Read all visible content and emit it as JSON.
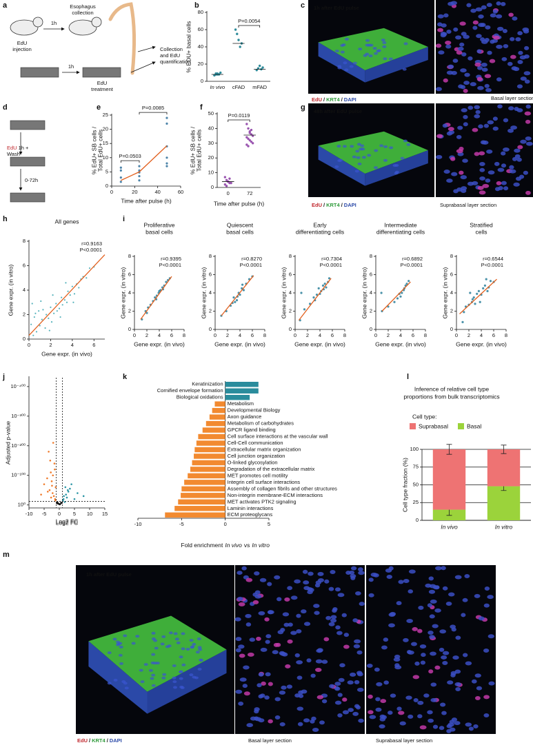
{
  "figure": {
    "labels": [
      "a",
      "b",
      "c",
      "d",
      "e",
      "f",
      "g",
      "h",
      "i",
      "j",
      "k",
      "l",
      "m"
    ],
    "a": {
      "edu": "EdU",
      "injection": "injection",
      "t1": "1h",
      "collection": [
        "Esophagus",
        "collection"
      ],
      "t2": "1h",
      "treatment": "treatment",
      "quant": [
        "Collection",
        "and EdU",
        "quantification"
      ]
    },
    "c": {
      "caption": "1h after EdU pulse",
      "section": "Basal layer section"
    },
    "d": {
      "edu": "EdU",
      "pulse": "1h +",
      "wash": "Wash",
      "chase": "0-72h"
    },
    "g": {
      "caption": "48h after EdU pulse",
      "section": "Suprabasal layer section"
    },
    "m": {
      "caption": "1h after EdU pulse",
      "basal": "Basal layer section",
      "suprabasal": "Suprabasal layer section"
    },
    "stain": {
      "edu": "EdU",
      "sep": "/",
      "krt4": "KRT4",
      "dapi": "DAPI"
    }
  },
  "chart_data": [
    {
      "type": "strip",
      "ylabel": "% EDU+ basal cells",
      "categories": [
        "In vivo",
        "cFAD",
        "mFAD"
      ],
      "values": [
        [
          7,
          8,
          9,
          8,
          10,
          7,
          9,
          8
        ],
        [
          60,
          55,
          48,
          40,
          44
        ],
        [
          13,
          15,
          18,
          14,
          16
        ]
      ],
      "medians": [
        8,
        44,
        14
      ],
      "color": "#2e8b9a",
      "median_color": "#f26b21",
      "ylim": [
        0,
        80
      ],
      "yticks": [
        0,
        20,
        40,
        60,
        80
      ],
      "comparisons": [
        {
          "label": "P=0.0054",
          "between": [
            "cFAD",
            "mFAD"
          ]
        }
      ]
    },
    {
      "type": "scatter-fit",
      "xlabel": "Time after pulse (h)",
      "ylabel": [
        "% EdU+ SB cells /",
        "Total EdU+ cells"
      ],
      "x": [
        8,
        8,
        8,
        8,
        24,
        24,
        24,
        24,
        24,
        48,
        48,
        48,
        48,
        48,
        48
      ],
      "y": [
        6.5,
        5.5,
        3,
        1.5,
        7,
        5.5,
        4.8,
        3.5,
        2,
        24,
        22,
        14,
        10,
        8,
        7
      ],
      "fit": {
        "x": [
          8,
          24,
          48
        ],
        "y": [
          2,
          5,
          14.2
        ]
      },
      "color": "#2e6f9a",
      "fit_color": "#e2601e",
      "xlim": [
        0,
        60
      ],
      "xticks": [
        0,
        20,
        40,
        60
      ],
      "ylim": [
        0,
        25
      ],
      "yticks": [
        0,
        5,
        10,
        15,
        20,
        25
      ],
      "comparisons": [
        {
          "label": "P=0.0503",
          "between": [
            8,
            24
          ]
        },
        {
          "label": "P=0.0085",
          "between": [
            24,
            48
          ]
        }
      ]
    },
    {
      "type": "strip",
      "xlabel": "Time after pulse (h)",
      "ylabel": [
        "% EdU+ SB cells /",
        "Total EdU+ cells"
      ],
      "categories": [
        "0",
        "72"
      ],
      "values": [
        [
          7,
          5,
          4,
          3,
          3,
          2,
          1,
          4,
          6
        ],
        [
          43,
          40,
          38,
          36,
          35,
          34,
          33,
          32,
          31,
          30,
          29,
          28,
          37,
          39
        ]
      ],
      "medians": [
        4,
        35.5
      ],
      "color": "#9a55b0",
      "median_color": "#e5262b",
      "ylim": [
        0,
        50
      ],
      "yticks": [
        0,
        10,
        20,
        30,
        40,
        50
      ],
      "comparisons": [
        {
          "label": "P=0.0119",
          "between": [
            "0",
            "72"
          ]
        }
      ]
    },
    {
      "type": "scatter-fit",
      "title": "All genes",
      "xlabel": "Gene expr. (in vivo)",
      "ylabel": "Gene expr. (in vitro)",
      "annotations": [
        "r=0.9163",
        "P<0.0001"
      ],
      "x": [
        0.2,
        0.4,
        0.5,
        0.7,
        0.9,
        1.0,
        1.2,
        1.3,
        1.5,
        1.6,
        1.8,
        2.0,
        2.1,
        2.3,
        2.5,
        2.6,
        2.8,
        3.0,
        3.1,
        3.3,
        3.5,
        3.6,
        3.8,
        4.0,
        4.2,
        4.4,
        4.6,
        4.8,
        5.0,
        5.3,
        5.6,
        6.0,
        0.3,
        1.1,
        2.2,
        3.4,
        0.6,
        1.9,
        2.9,
        4.1
      ],
      "y": [
        1.2,
        0.3,
        1.8,
        0.6,
        2.3,
        1.1,
        1.6,
        2.4,
        0.9,
        2.0,
        1.7,
        2.6,
        1.4,
        2.1,
        2.9,
        2.3,
        2.5,
        3.4,
        2.8,
        3.2,
        3.0,
        3.9,
        3.6,
        4.3,
        3.7,
        4.5,
        4.2,
        4.9,
        5.1,
        5.0,
        5.8,
        5.9,
        2.9,
        3.1,
        3.6,
        4.6,
        2.1,
        0.7,
        1.8,
        3.0
      ],
      "fit": {
        "x": [
          0,
          7
        ],
        "y": [
          0.3,
          6.9
        ]
      },
      "color": "#3aa6b0",
      "fit_color": "#e2601e",
      "xlim": [
        0,
        7
      ],
      "xticks": [
        0,
        2,
        4,
        6
      ],
      "ylim": [
        0,
        8
      ],
      "yticks": [
        0,
        2,
        4,
        6,
        8
      ]
    },
    {
      "type": "scatter-fit",
      "title": [
        "Proliferative",
        "basal cells"
      ],
      "xlabel": "Gene expr. (in vivo)",
      "ylabel": "Gene expr. (in vitro)",
      "annotations": [
        "r=0.9395",
        "P<0.0001"
      ],
      "x": [
        1.2,
        1.8,
        2.2,
        2.6,
        3.0,
        3.3,
        3.6,
        3.9,
        4.2,
        4.5,
        4.8,
        5.1,
        5.4,
        5.7,
        2.0,
        3.5,
        4.0,
        4.6
      ],
      "y": [
        1.1,
        2.0,
        2.4,
        2.7,
        3.1,
        3.5,
        3.7,
        4.0,
        4.3,
        4.6,
        4.8,
        5.2,
        5.4,
        5.6,
        1.8,
        3.3,
        4.2,
        4.4
      ],
      "fit": {
        "x": [
          1,
          6
        ],
        "y": [
          1.1,
          5.8
        ]
      },
      "color": "#2a7f9a",
      "fit_color": "#e2601e",
      "xlim": [
        0,
        8
      ],
      "xticks": [
        0,
        2,
        4,
        6,
        8
      ],
      "ylim": [
        0,
        8
      ],
      "yticks": [
        0,
        2,
        4,
        6,
        8
      ]
    },
    {
      "type": "scatter-fit",
      "title": [
        "Quiescent",
        "basal cells"
      ],
      "xlabel": "Gene expr. (in vivo)",
      "ylabel": "Gene expr. (in vitro)",
      "annotations": [
        "r=0.8270",
        "P<0.0001"
      ],
      "x": [
        1.0,
        1.8,
        2.5,
        3.0,
        3.2,
        3.5,
        3.8,
        4.0,
        4.3,
        4.6,
        5.0,
        5.5,
        6.0,
        2.8,
        3.6,
        4.4
      ],
      "y": [
        1.5,
        2.0,
        2.6,
        3.5,
        3.0,
        3.2,
        4.0,
        3.8,
        4.5,
        4.3,
        5.0,
        5.5,
        5.8,
        2.9,
        3.6,
        4.9
      ],
      "fit": {
        "x": [
          1,
          6.2
        ],
        "y": [
          1.5,
          5.9
        ]
      },
      "color": "#2a7f9a",
      "fit_color": "#e2601e",
      "xlim": [
        0,
        8
      ],
      "xticks": [
        0,
        2,
        4,
        6,
        8
      ],
      "ylim": [
        0,
        8
      ],
      "yticks": [
        0,
        2,
        4,
        6,
        8
      ]
    },
    {
      "type": "scatter-fit",
      "title": [
        "Early",
        "differentiating cells"
      ],
      "xlabel": "Gene expr. (in vivo)",
      "ylabel": "Gene expr. (in vitro)",
      "annotations": [
        "r=0.7304",
        "P<0.0001"
      ],
      "x": [
        0.8,
        1.5,
        2.4,
        3.0,
        3.5,
        3.8,
        4.2,
        4.5,
        4.8,
        5.0,
        5.3,
        5.5,
        1.0,
        3.2,
        4.0,
        4.6
      ],
      "y": [
        1.0,
        2.2,
        2.8,
        3.5,
        3.8,
        4.5,
        4.2,
        4.8,
        5.0,
        4.6,
        5.2,
        5.6,
        4.0,
        3.2,
        3.9,
        4.4
      ],
      "fit": {
        "x": [
          0.6,
          5.8
        ],
        "y": [
          1.0,
          5.6
        ]
      },
      "color": "#2a7f9a",
      "fit_color": "#e2601e",
      "xlim": [
        0,
        8
      ],
      "xticks": [
        0,
        2,
        4,
        6,
        8
      ],
      "ylim": [
        0,
        8
      ],
      "yticks": [
        0,
        2,
        4,
        6,
        8
      ]
    },
    {
      "type": "scatter-fit",
      "title": [
        "Intermediate",
        "differentiating cells"
      ],
      "xlabel": "Gene expr. (in vivo)",
      "ylabel": "Gene expr. (in vitro)",
      "annotations": [
        "r=0.6892",
        "P<0.0001"
      ],
      "x": [
        1.0,
        2.0,
        3.0,
        3.5,
        3.8,
        4.2,
        4.5,
        4.8,
        5.0,
        5.3,
        0.9,
        4.0,
        4.6
      ],
      "y": [
        2.0,
        2.5,
        3.0,
        3.4,
        3.9,
        4.0,
        4.3,
        4.8,
        5.0,
        5.3,
        4.0,
        3.6,
        4.5
      ],
      "fit": {
        "x": [
          1,
          5.6
        ],
        "y": [
          2.0,
          5.2
        ]
      },
      "color": "#2a7f9a",
      "fit_color": "#e2601e",
      "xlim": [
        0,
        8
      ],
      "xticks": [
        0,
        2,
        4,
        6,
        8
      ],
      "ylim": [
        0,
        8
      ],
      "yticks": [
        0,
        2,
        4,
        6,
        8
      ]
    },
    {
      "type": "scatter-fit",
      "title": [
        "Stratified",
        "cells"
      ],
      "xlabel": "Gene expr. (in vivo)",
      "ylabel": "Gene expr. (in vitro)",
      "annotations": [
        "r=0.6544",
        "P<0.0001"
      ],
      "x": [
        1.0,
        1.5,
        2.0,
        2.5,
        2.8,
        3.0,
        3.3,
        3.6,
        4.0,
        4.3,
        4.6,
        5.0,
        5.5,
        6.0,
        2.2,
        3.8,
        4.8,
        1.2,
        2.6,
        5.2
      ],
      "y": [
        0.8,
        2.5,
        2.7,
        3.0,
        3.5,
        2.8,
        3.9,
        4.2,
        3.8,
        4.5,
        4.8,
        4.2,
        5.3,
        5.2,
        4.0,
        3.0,
        5.5,
        1.9,
        3.3,
        4.6
      ],
      "fit": {
        "x": [
          0.5,
          6.5
        ],
        "y": [
          1.7,
          5.5
        ]
      },
      "color": "#2a7f9a",
      "fit_color": "#e2601e",
      "xlim": [
        0,
        8
      ],
      "xticks": [
        0,
        2,
        4,
        6,
        8
      ],
      "ylim": [
        0,
        8
      ],
      "yticks": [
        0,
        2,
        4,
        6,
        8
      ]
    },
    {
      "type": "volcano",
      "xlabel": "Log2 FC",
      "ylabel": "Adjusted p-value",
      "series": [
        {
          "color": "#f07a2a",
          "x": [
            -2,
            -3,
            -1.5,
            -4,
            -2.5,
            -1.2,
            -3.5,
            -2.2,
            -1.8,
            -5,
            -2.8,
            -1.4,
            -3.2,
            -2.1,
            -1.6,
            -6,
            -2.4,
            -1.3,
            -3.8,
            -2.7
          ],
          "y": [
            210,
            150,
            120,
            90,
            80,
            60,
            180,
            40,
            30,
            70,
            110,
            20,
            50,
            100,
            140,
            35,
            65,
            15,
            45,
            25
          ]
        },
        {
          "color": "#2a95a5",
          "x": [
            2,
            3,
            1.5,
            4,
            2.5,
            1.2,
            3.5,
            5,
            2.2,
            6,
            1.8,
            8,
            2.8,
            1.4
          ],
          "y": [
            60,
            45,
            30,
            70,
            25,
            15,
            55,
            20,
            35,
            40,
            10,
            30,
            50,
            20
          ]
        },
        {
          "color": "#111111",
          "x": [
            -0.5,
            0.3,
            0.6,
            -0.8,
            0.1,
            -0.2,
            0.8,
            -0.6
          ],
          "y": [
            5,
            3,
            8,
            6,
            2,
            4,
            7,
            9
          ]
        }
      ],
      "cutoffs": {
        "x": [
          -1,
          1
        ],
        "y": [
          12
        ]
      },
      "xlim": [
        -10,
        15
      ],
      "xticks": [
        -10,
        -5,
        0,
        5,
        10,
        15
      ],
      "ylim": [
        -10,
        430
      ],
      "yticks": [
        {
          "value": 0,
          "label": "10⁰"
        },
        {
          "value": 100,
          "label": "10⁻¹⁰⁰"
        },
        {
          "value": 200,
          "label": "10⁻²⁰⁰"
        },
        {
          "value": 300,
          "label": "10⁻³⁰⁰"
        },
        {
          "value": 400,
          "label": "10⁻⁴⁰⁰"
        }
      ]
    },
    {
      "type": "hbar",
      "xlabel": [
        "Fold enrichment",
        "In vivo",
        "vs",
        "In vitro"
      ],
      "categories": [
        "Keratinization",
        "Cornified envelope formation",
        "Biological oxidations",
        "Metabolism",
        "Developmental Biology",
        "Axon guidance",
        "Metabolism of carbohydrates",
        "GPCR ligand binding",
        "Cell surface interactions at the vascular wall",
        "Cell-Cell communication",
        "Extracellular matrix organization",
        "Cell junction organization",
        "O-linked glycosylation",
        "Degradation of the extracellular matrix",
        "MET promotes cell motility",
        "Integrin cell surface interactions",
        "Assembly of collagen fibrils and other structures",
        "Non-integrin membrane-ECM interactions",
        "MET activates PTK2 signaling",
        "Laminin interactions",
        "ECM proteoglycans"
      ],
      "values": [
        3.8,
        3.8,
        2.8,
        -1.2,
        -1.5,
        -1.8,
        -2.2,
        -2.6,
        -3.1,
        -3.3,
        -3.5,
        -3.6,
        -3.8,
        -4.0,
        -4.3,
        -4.7,
        -5.0,
        -5.1,
        -5.4,
        -5.8,
        -6.9
      ],
      "category_colors": [
        "#111",
        "#111",
        "#111",
        "#111",
        "#999",
        "#999",
        "#111",
        "#111",
        "#999",
        "#111",
        "#111",
        "#111",
        "#111",
        "#111",
        "#111",
        "#111",
        "#111",
        "#111",
        "#111",
        "#111",
        "#111"
      ],
      "color_positive": "#2a8c9c",
      "color_negative": "#f28a30",
      "xlim": [
        -10,
        5
      ],
      "xticks": [
        -10,
        -5,
        0,
        5
      ]
    },
    {
      "type": "stacked-bar",
      "title": [
        "Inference of relative cell type",
        "proportions from bulk transcriptomics"
      ],
      "legend_title": "Cell type:",
      "ylabel": "Cell type fraction (%)",
      "categories": [
        "In vivo",
        "In vitro"
      ],
      "series": [
        {
          "name": "Basal",
          "color": "#9bd33b",
          "values": [
            15,
            48
          ],
          "errors": [
            8,
            6
          ]
        },
        {
          "name": "Suprabasal",
          "color": "#ee7373",
          "values": [
            85,
            52
          ],
          "errors": [
            7,
            6
          ]
        }
      ],
      "ylim": [
        0,
        100
      ],
      "yticks": [
        0,
        25,
        50,
        75,
        100
      ],
      "grid": true
    }
  ]
}
